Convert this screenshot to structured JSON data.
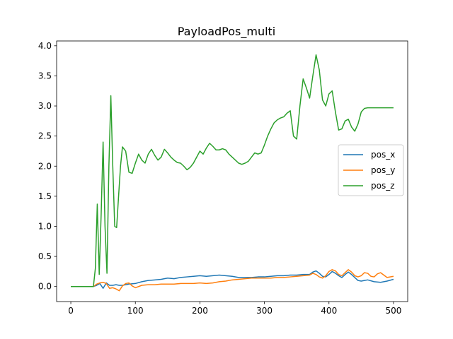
{
  "chart_data": {
    "type": "line",
    "title": "PayloadPos_multi",
    "xlabel": "",
    "ylabel": "",
    "xlim": [
      -22,
      522
    ],
    "ylim": [
      -0.25,
      4.08
    ],
    "xticks": [
      0,
      100,
      200,
      300,
      400,
      500
    ],
    "yticks": [
      0.0,
      0.5,
      1.0,
      1.5,
      2.0,
      2.5,
      3.0,
      3.5,
      4.0
    ],
    "xtick_labels": [
      "0",
      "100",
      "200",
      "300",
      "400",
      "500"
    ],
    "ytick_labels": [
      "0.0",
      "0.5",
      "1.0",
      "1.5",
      "2.0",
      "2.5",
      "3.0",
      "3.5",
      "4.0"
    ],
    "grid": false,
    "legend_position": "center-right",
    "series": [
      {
        "name": "pos_x",
        "color": "#1f77b4",
        "x": [
          0,
          35,
          40,
          45,
          50,
          55,
          60,
          65,
          70,
          75,
          80,
          90,
          100,
          110,
          120,
          130,
          140,
          150,
          160,
          170,
          180,
          190,
          200,
          210,
          220,
          230,
          240,
          250,
          260,
          270,
          280,
          290,
          300,
          310,
          320,
          330,
          340,
          350,
          360,
          370,
          375,
          380,
          385,
          390,
          395,
          400,
          405,
          410,
          415,
          420,
          425,
          430,
          435,
          440,
          445,
          450,
          455,
          460,
          470,
          480,
          490,
          500
        ],
        "y": [
          0.0,
          0.0,
          0.02,
          0.05,
          -0.03,
          0.06,
          0.02,
          0.02,
          0.03,
          0.02,
          0.02,
          0.04,
          0.05,
          0.08,
          0.1,
          0.11,
          0.12,
          0.14,
          0.13,
          0.15,
          0.16,
          0.17,
          0.18,
          0.17,
          0.18,
          0.19,
          0.18,
          0.17,
          0.15,
          0.15,
          0.15,
          0.16,
          0.16,
          0.17,
          0.18,
          0.18,
          0.19,
          0.19,
          0.2,
          0.2,
          0.24,
          0.26,
          0.22,
          0.17,
          0.16,
          0.2,
          0.25,
          0.22,
          0.18,
          0.15,
          0.2,
          0.24,
          0.2,
          0.15,
          0.1,
          0.09,
          0.1,
          0.11,
          0.08,
          0.07,
          0.09,
          0.12
        ]
      },
      {
        "name": "pos_y",
        "color": "#ff7f0e",
        "x": [
          0,
          35,
          40,
          45,
          50,
          55,
          60,
          65,
          70,
          75,
          80,
          85,
          90,
          95,
          100,
          110,
          120,
          130,
          140,
          150,
          160,
          170,
          180,
          190,
          200,
          210,
          220,
          230,
          240,
          250,
          260,
          270,
          280,
          290,
          300,
          310,
          320,
          330,
          340,
          350,
          360,
          370,
          375,
          380,
          385,
          390,
          395,
          400,
          405,
          410,
          415,
          420,
          425,
          430,
          435,
          440,
          445,
          450,
          455,
          460,
          465,
          470,
          475,
          480,
          485,
          490,
          500
        ],
        "y": [
          0.0,
          0.0,
          0.04,
          0.06,
          0.07,
          0.05,
          -0.03,
          -0.02,
          -0.04,
          -0.07,
          0.01,
          0.05,
          0.06,
          0.01,
          -0.02,
          0.02,
          0.03,
          0.03,
          0.04,
          0.04,
          0.04,
          0.05,
          0.05,
          0.05,
          0.06,
          0.05,
          0.06,
          0.08,
          0.09,
          0.11,
          0.12,
          0.13,
          0.14,
          0.14,
          0.14,
          0.14,
          0.15,
          0.15,
          0.16,
          0.17,
          0.18,
          0.19,
          0.22,
          0.2,
          0.16,
          0.14,
          0.18,
          0.25,
          0.28,
          0.26,
          0.2,
          0.18,
          0.23,
          0.28,
          0.24,
          0.18,
          0.16,
          0.18,
          0.23,
          0.22,
          0.17,
          0.16,
          0.21,
          0.23,
          0.19,
          0.15,
          0.17
        ]
      },
      {
        "name": "pos_z",
        "color": "#2ca02c",
        "x": [
          0,
          35,
          38,
          41,
          44,
          47,
          50,
          53,
          56,
          59,
          62,
          65,
          68,
          71,
          74,
          77,
          80,
          85,
          90,
          95,
          100,
          105,
          110,
          115,
          120,
          125,
          130,
          135,
          140,
          145,
          150,
          155,
          160,
          165,
          170,
          175,
          180,
          185,
          190,
          195,
          200,
          205,
          210,
          215,
          220,
          225,
          230,
          235,
          240,
          245,
          250,
          255,
          260,
          265,
          270,
          275,
          280,
          285,
          290,
          295,
          300,
          305,
          310,
          315,
          320,
          325,
          330,
          335,
          340,
          345,
          350,
          355,
          360,
          365,
          370,
          375,
          380,
          385,
          390,
          395,
          400,
          405,
          410,
          415,
          420,
          425,
          430,
          435,
          440,
          445,
          450,
          455,
          460,
          465,
          470,
          475,
          480,
          485,
          490,
          495,
          500
        ],
        "y": [
          0.0,
          0.0,
          0.3,
          1.37,
          0.2,
          1.2,
          2.4,
          1.0,
          0.22,
          2.0,
          3.17,
          2.0,
          1.0,
          0.98,
          1.5,
          2.0,
          2.32,
          2.25,
          1.9,
          1.88,
          2.05,
          2.2,
          2.1,
          2.05,
          2.2,
          2.28,
          2.18,
          2.1,
          2.15,
          2.28,
          2.22,
          2.15,
          2.1,
          2.06,
          2.05,
          2.0,
          1.94,
          1.98,
          2.05,
          2.15,
          2.25,
          2.2,
          2.3,
          2.38,
          2.33,
          2.27,
          2.27,
          2.29,
          2.27,
          2.2,
          2.15,
          2.1,
          2.05,
          2.03,
          2.05,
          2.08,
          2.15,
          2.22,
          2.2,
          2.22,
          2.35,
          2.5,
          2.62,
          2.72,
          2.77,
          2.8,
          2.82,
          2.88,
          2.92,
          2.5,
          2.45,
          3.0,
          3.45,
          3.3,
          3.13,
          3.5,
          3.85,
          3.6,
          3.1,
          3.0,
          3.2,
          3.25,
          2.9,
          2.6,
          2.62,
          2.75,
          2.78,
          2.65,
          2.58,
          2.7,
          2.9,
          2.96,
          2.97,
          2.97,
          2.97,
          2.97,
          2.97,
          2.97,
          2.97,
          2.97,
          2.97
        ]
      }
    ]
  }
}
